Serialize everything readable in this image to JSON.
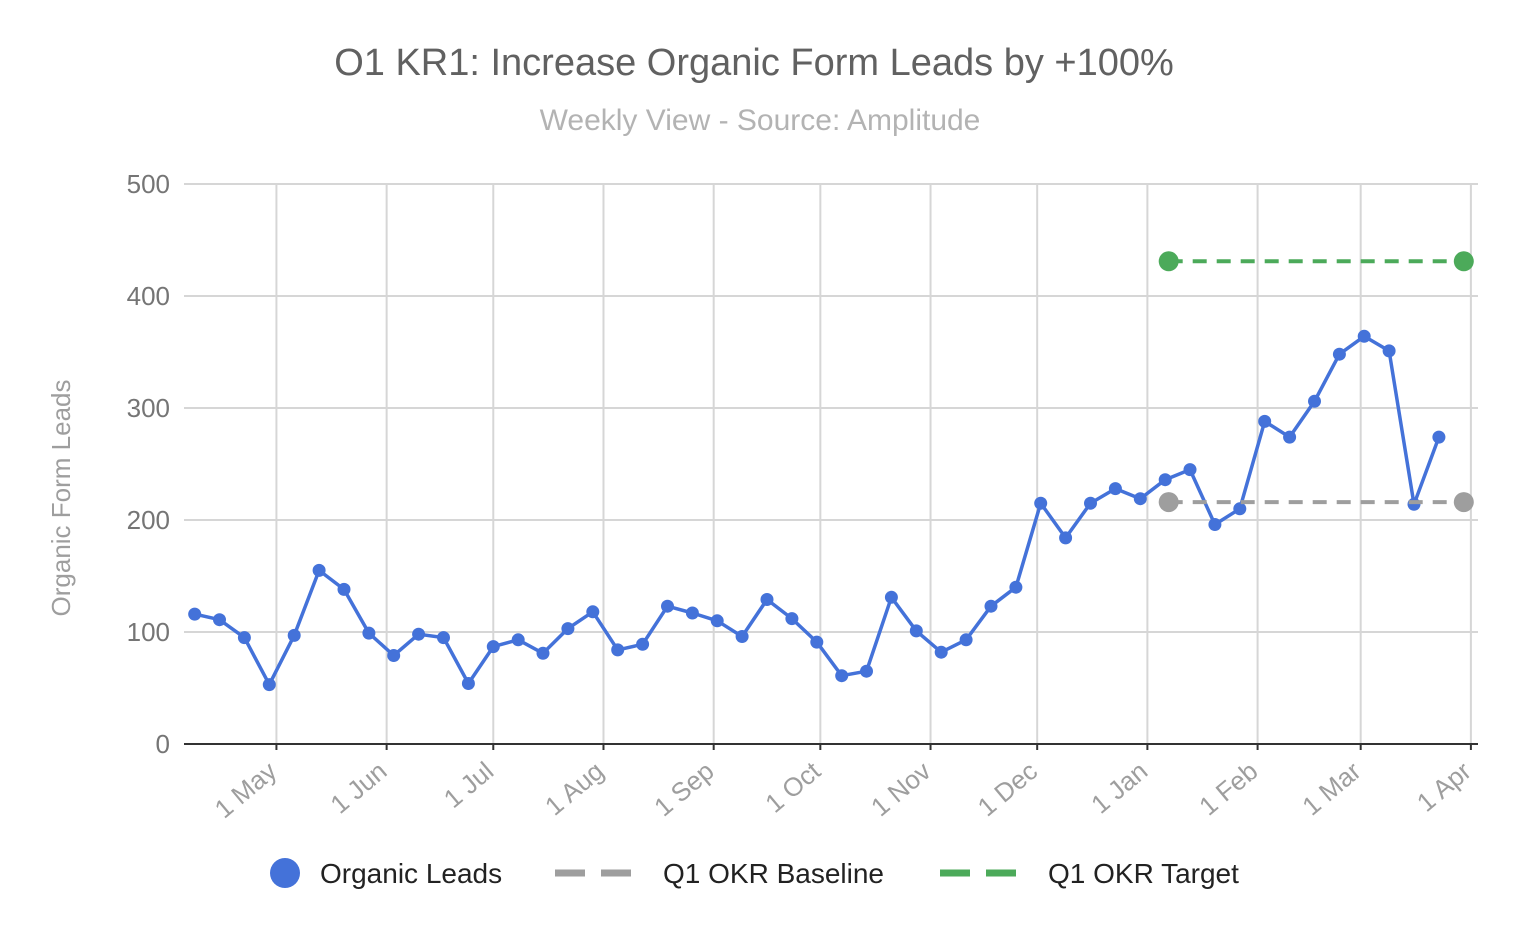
{
  "chart_data": {
    "type": "line",
    "title": "O1 KR1: Increase Organic Form Leads by +100%",
    "subtitle": "Weekly View - Source: Amplitude",
    "xlabel": "",
    "ylabel": "Organic Form Leads",
    "ylim": [
      0,
      500
    ],
    "yticks": [
      0,
      100,
      200,
      300,
      400,
      500
    ],
    "xlim": [
      "2019-04-05",
      "2020-04-03"
    ],
    "xticks": [
      {
        "date": "2019-05-01",
        "label": "1 May"
      },
      {
        "date": "2019-06-01",
        "label": "1 Jun"
      },
      {
        "date": "2019-07-01",
        "label": "1 Jul"
      },
      {
        "date": "2019-08-01",
        "label": "1 Aug"
      },
      {
        "date": "2019-09-01",
        "label": "1 Sep"
      },
      {
        "date": "2019-10-01",
        "label": "1 Oct"
      },
      {
        "date": "2019-11-01",
        "label": "1 Nov"
      },
      {
        "date": "2019-12-01",
        "label": "1 Dec"
      },
      {
        "date": "2020-01-01",
        "label": "1 Jan"
      },
      {
        "date": "2020-02-01",
        "label": "1 Feb"
      },
      {
        "date": "2020-03-01",
        "label": "1 Mar"
      },
      {
        "date": "2020-04-01",
        "label": "1 Apr"
      }
    ],
    "grid": true,
    "legend_position": "bottom",
    "series": [
      {
        "name": "Organic Leads",
        "color": "#4472d9",
        "style": "solid",
        "x": [
          "2019-04-08",
          "2019-04-15",
          "2019-04-22",
          "2019-04-29",
          "2019-05-06",
          "2019-05-13",
          "2019-05-20",
          "2019-05-27",
          "2019-06-03",
          "2019-06-10",
          "2019-06-17",
          "2019-06-24",
          "2019-07-01",
          "2019-07-08",
          "2019-07-15",
          "2019-07-22",
          "2019-07-29",
          "2019-08-05",
          "2019-08-12",
          "2019-08-19",
          "2019-08-26",
          "2019-09-02",
          "2019-09-09",
          "2019-09-16",
          "2019-09-23",
          "2019-09-30",
          "2019-10-07",
          "2019-10-14",
          "2019-10-21",
          "2019-10-28",
          "2019-11-04",
          "2019-11-11",
          "2019-11-18",
          "2019-11-25",
          "2019-12-02",
          "2019-12-09",
          "2019-12-16",
          "2019-12-23",
          "2019-12-30",
          "2020-01-06",
          "2020-01-13",
          "2020-01-20",
          "2020-01-27",
          "2020-02-03",
          "2020-02-10",
          "2020-02-17",
          "2020-02-24",
          "2020-03-02",
          "2020-03-09",
          "2020-03-16",
          "2020-03-23"
        ],
        "values": [
          116,
          111,
          95,
          53,
          97,
          155,
          138,
          99,
          79,
          98,
          95,
          54,
          87,
          93,
          81,
          103,
          118,
          84,
          89,
          123,
          117,
          110,
          96,
          129,
          112,
          91,
          61,
          65,
          131,
          101,
          82,
          93,
          123,
          140,
          215,
          184,
          215,
          228,
          219,
          236,
          245,
          196,
          210,
          288,
          274,
          306,
          348,
          364,
          351,
          214,
          274
        ]
      },
      {
        "name": "Q1 OKR Baseline",
        "color": "#9e9e9e",
        "style": "dashed",
        "x": [
          "2020-01-07",
          "2020-03-30"
        ],
        "values": [
          216,
          216
        ]
      },
      {
        "name": "Q1 OKR Target",
        "color": "#4caa5a",
        "style": "dashed",
        "x": [
          "2020-01-07",
          "2020-03-30"
        ],
        "values": [
          431,
          431
        ]
      }
    ]
  },
  "legend": {
    "items": [
      {
        "label": "Organic Leads",
        "color": "#4472d9",
        "marker": "circle"
      },
      {
        "label": "Q1 OKR Baseline",
        "color": "#9e9e9e",
        "marker": "dash"
      },
      {
        "label": "Q1 OKR Target",
        "color": "#4caa5a",
        "marker": "dash"
      }
    ]
  }
}
